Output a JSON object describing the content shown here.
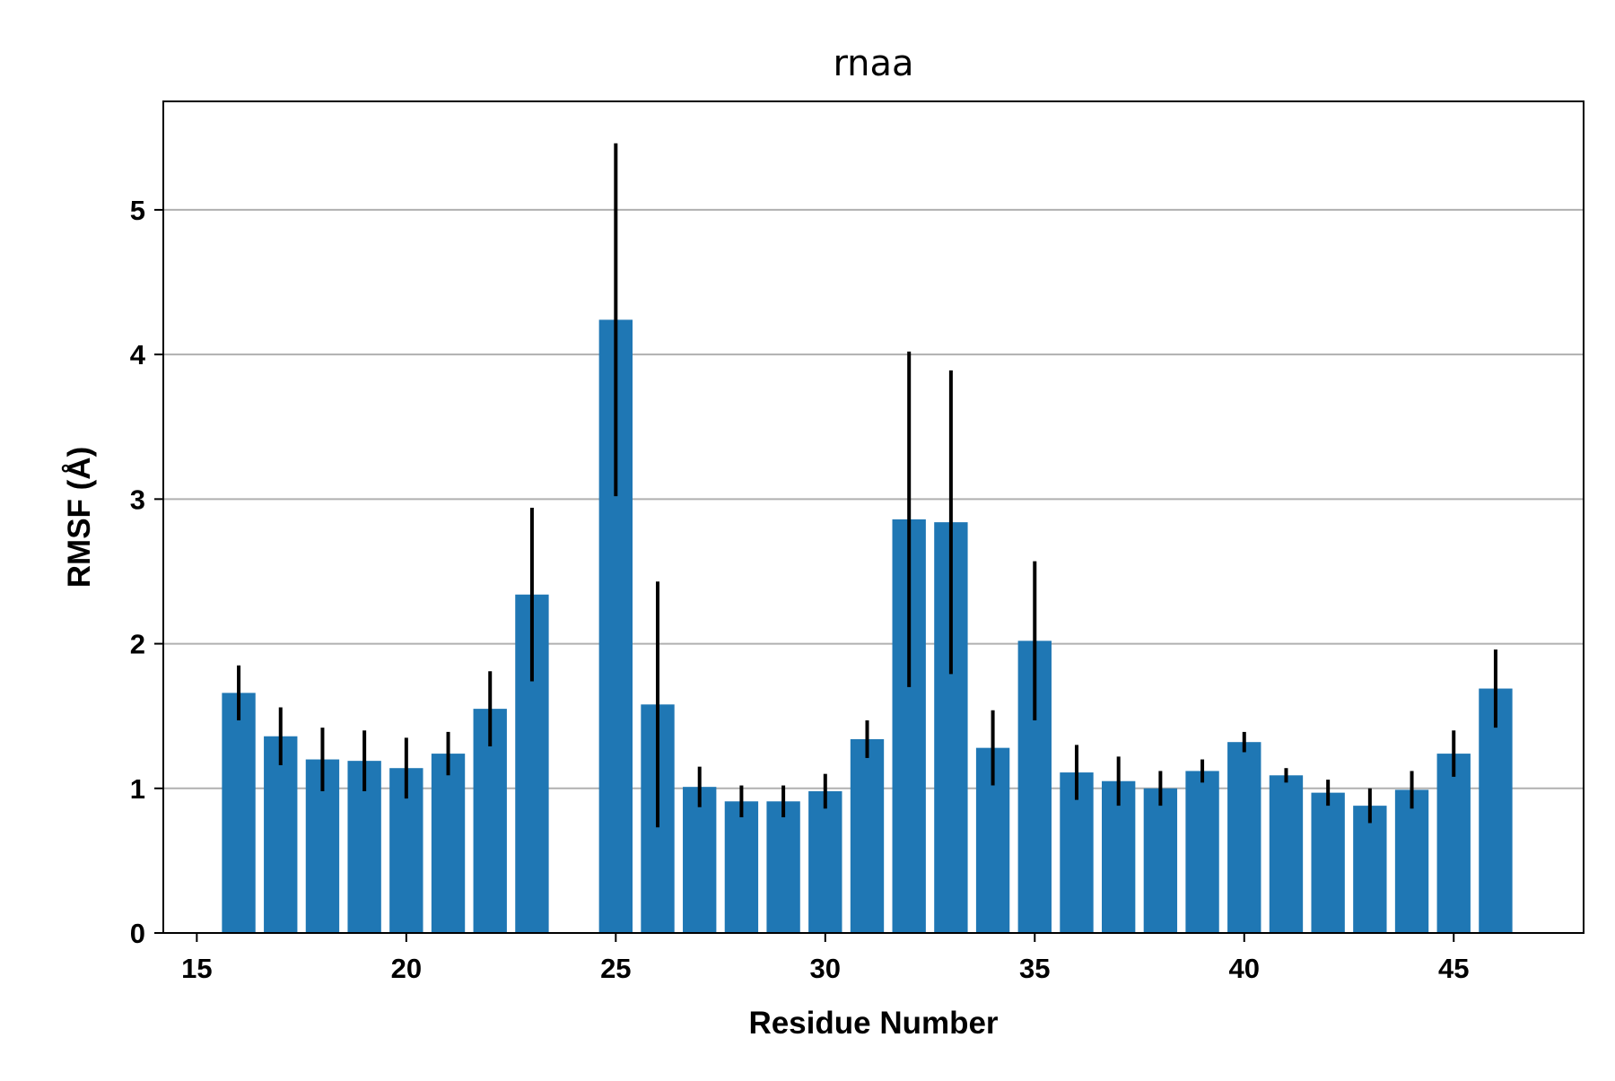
{
  "chart_data": {
    "type": "bar",
    "title": "rnaa",
    "xlabel": "Residue Number",
    "ylabel": "RMSF (Å)",
    "xlim": [
      14.2,
      48.1
    ],
    "ylim": [
      0,
      5.75
    ],
    "x_ticks": [
      15,
      20,
      25,
      30,
      35,
      40,
      45
    ],
    "y_ticks": [
      0,
      1,
      2,
      3,
      4,
      5
    ],
    "grid": "y",
    "bar_color": "#1f77b4",
    "errorbar_color": "#000000",
    "x": [
      16,
      17,
      18,
      19,
      20,
      21,
      22,
      23,
      25,
      26,
      27,
      28,
      29,
      30,
      31,
      32,
      33,
      34,
      35,
      36,
      37,
      38,
      39,
      40,
      41,
      42,
      43,
      44,
      45,
      46
    ],
    "values": [
      1.66,
      1.36,
      1.2,
      1.19,
      1.14,
      1.24,
      1.55,
      2.34,
      4.24,
      1.58,
      1.01,
      0.91,
      0.91,
      0.98,
      1.34,
      2.86,
      2.84,
      1.28,
      2.02,
      1.11,
      1.05,
      1.0,
      1.12,
      1.32,
      1.09,
      0.97,
      0.88,
      0.99,
      1.24,
      1.69
    ],
    "errors": [
      0.19,
      0.2,
      0.22,
      0.21,
      0.21,
      0.15,
      0.26,
      0.6,
      1.22,
      0.85,
      0.14,
      0.11,
      0.11,
      0.12,
      0.13,
      1.16,
      1.05,
      0.26,
      0.55,
      0.19,
      0.17,
      0.12,
      0.08,
      0.07,
      0.05,
      0.09,
      0.12,
      0.13,
      0.16,
      0.27
    ]
  }
}
